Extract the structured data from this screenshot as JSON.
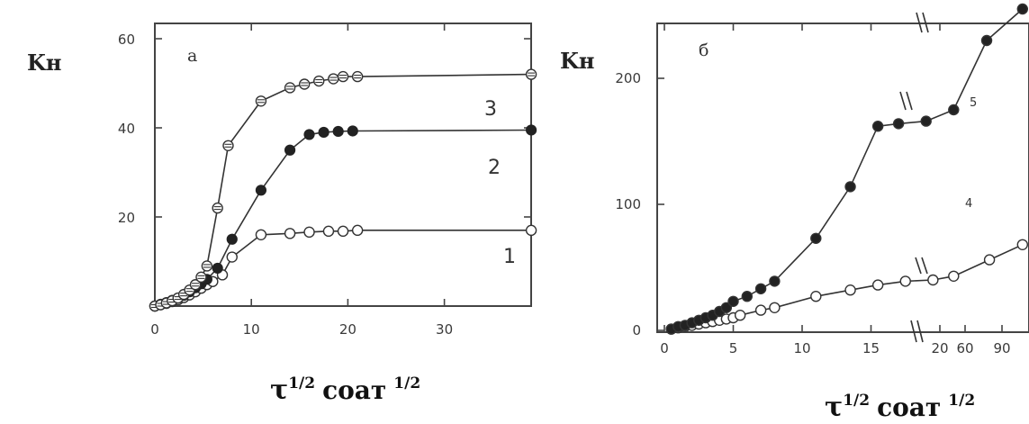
{
  "chart_data": [
    {
      "type": "line",
      "panel_label": "a",
      "ylabel": "Kн",
      "xlabel": {
        "tau": "τ",
        "exp": "1/2",
        "unit": "соат",
        "unit_exp": "1/2"
      },
      "xlim": [
        0,
        39
      ],
      "ylim": [
        0,
        60
      ],
      "x_ticks": [
        "0",
        "10",
        "20",
        "30"
      ],
      "y_ticks": [
        "20",
        "40",
        "60"
      ],
      "grid": false,
      "series": [
        {
          "name": "1",
          "marker": "open",
          "x": [
            0,
            0.6,
            1.2,
            1.8,
            2.4,
            3,
            3.6,
            4.2,
            4.8,
            5.4,
            6,
            7,
            8,
            11,
            14,
            16,
            18,
            19.5,
            21,
            39
          ],
          "y": [
            0,
            0.3,
            0.6,
            1,
            1.4,
            1.9,
            2.5,
            3.2,
            4,
            4.8,
            5.5,
            7,
            11,
            16,
            16.3,
            16.6,
            16.8,
            16.8,
            17,
            17
          ]
        },
        {
          "name": "2",
          "marker": "filled",
          "x": [
            0,
            0.6,
            1.2,
            1.8,
            2.4,
            3,
            3.6,
            4.2,
            4.8,
            5.4,
            6.5,
            8,
            11,
            14,
            16,
            17.5,
            19,
            20.5,
            39
          ],
          "y": [
            0,
            0.4,
            0.8,
            1.3,
            1.8,
            2.4,
            3.2,
            4.1,
            5,
            6,
            8.5,
            15,
            26,
            35,
            38.5,
            39,
            39.2,
            39.3,
            39.5
          ]
        },
        {
          "name": "3",
          "marker": "crossed",
          "x": [
            0,
            0.6,
            1.2,
            1.8,
            2.4,
            3,
            3.6,
            4.2,
            4.8,
            5.4,
            6.5,
            7.6,
            11,
            14,
            15.5,
            17,
            18.5,
            19.5,
            21,
            39
          ],
          "y": [
            0,
            0.3,
            0.7,
            1.2,
            1.8,
            2.6,
            3.6,
            4.8,
            6.5,
            9,
            22,
            36,
            46,
            49,
            49.8,
            50.5,
            51,
            51.5,
            51.5,
            52
          ]
        }
      ]
    },
    {
      "type": "line",
      "panel_label": "б",
      "ylabel": "Kн",
      "xlabel": {
        "tau": "τ",
        "exp": "1/2",
        "unit": "соат",
        "unit_exp": "1/2"
      },
      "xlim": [
        0,
        26
      ],
      "ylim": [
        0,
        260
      ],
      "x_ticks": [
        "0",
        "5",
        "10",
        "15",
        "20",
        "60",
        "90"
      ],
      "y_ticks": [
        "0",
        "100",
        "200"
      ],
      "grid": false,
      "axis_break": "yes",
      "series": [
        {
          "name": "4",
          "marker": "open",
          "x": [
            0.5,
            1,
            1.5,
            2,
            2.5,
            3,
            3.5,
            4,
            4.5,
            5,
            5.5,
            7,
            8,
            11,
            13.5,
            15.5,
            17.5,
            19.5,
            21,
            23.6,
            26
          ],
          "y": [
            1,
            2,
            3,
            4,
            5,
            6,
            7,
            8,
            9,
            10,
            12,
            16,
            18,
            27,
            32,
            36,
            39,
            40,
            43,
            56,
            68
          ]
        },
        {
          "name": "5",
          "marker": "filled",
          "x": [
            0.5,
            1,
            1.5,
            2,
            2.5,
            3,
            3.5,
            4,
            4.5,
            5,
            6,
            7,
            8,
            11,
            13.5,
            15.5,
            17,
            19,
            21,
            23.4,
            26
          ],
          "y": [
            1,
            3,
            4,
            6,
            8,
            10,
            12,
            15,
            18,
            23,
            27,
            33,
            39,
            73,
            114,
            162,
            164,
            166,
            175,
            230,
            255
          ]
        }
      ]
    }
  ]
}
